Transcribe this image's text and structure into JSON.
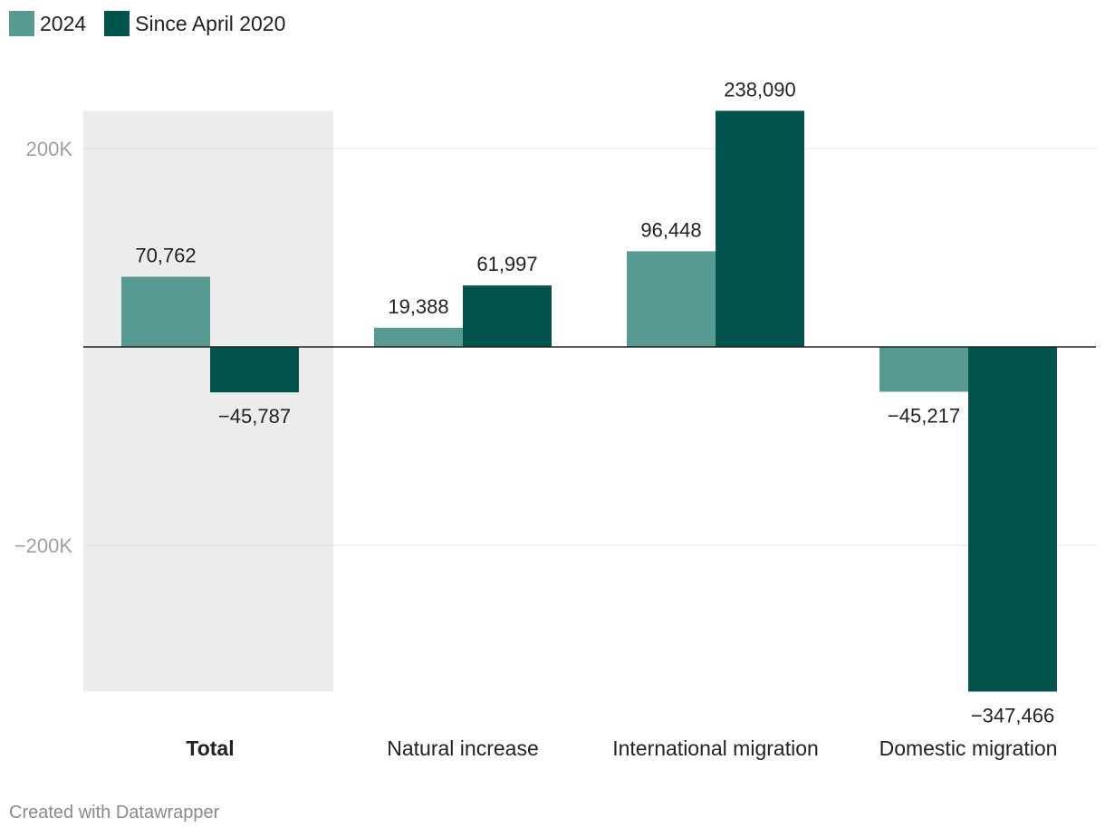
{
  "chart_data": {
    "type": "bar",
    "categories": [
      "Total",
      "Natural increase",
      "International migration",
      "Domestic migration"
    ],
    "highlighted_category": "Total",
    "series": [
      {
        "name": "2024",
        "color": "#579a91",
        "values": [
          70762,
          19388,
          96448,
          -45217
        ]
      },
      {
        "name": "Since April 2020",
        "color": "#02544c",
        "values": [
          -45787,
          61997,
          238090,
          -347466
        ]
      }
    ],
    "value_labels": [
      [
        "70,762",
        "19,388",
        "96,448",
        "−45,217"
      ],
      [
        "−45,787",
        "61,997",
        "238,090",
        "−347,466"
      ]
    ],
    "y_ticks": [
      200000,
      -200000
    ],
    "y_tick_labels": [
      "200K",
      "−200K"
    ],
    "ylim": [
      -347466,
      238090
    ],
    "grid": true,
    "legend": "top-left"
  },
  "legend": {
    "items": [
      {
        "label": "2024",
        "color": "#579a91"
      },
      {
        "label": "Since April 2020",
        "color": "#02544c"
      }
    ]
  },
  "footer": {
    "credit": "Created with Datawrapper"
  }
}
